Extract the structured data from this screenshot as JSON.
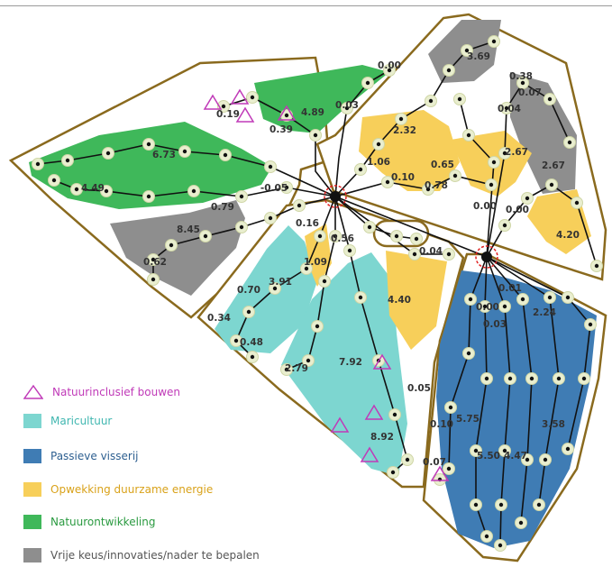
{
  "legend": {
    "items": [
      {
        "label": "Natuurinclusief bouwen",
        "color": "#c03ab8",
        "icon": "triangle-outline-icon",
        "label_color": "#c03ab8"
      },
      {
        "label": "Maricultuur",
        "color": "#7dd6d0",
        "icon": "square-swatch",
        "label_color": "#40b7b0"
      },
      {
        "label": "Passieve visserij",
        "color": "#3f7cb4",
        "icon": "square-swatch",
        "label_color": "#2d5f90"
      },
      {
        "label": "Opwekking duurzame energie",
        "color": "#f7cf5a",
        "icon": "square-swatch",
        "label_color": "#d9a21a"
      },
      {
        "label": "Natuurontwikkeling",
        "color": "#3fb85a",
        "icon": "square-swatch",
        "label_color": "#2a9a40"
      },
      {
        "label": "Vrije keus/innovaties/nader te bepalen",
        "color": "#8e8e8e",
        "icon": "square-swatch",
        "label_color": "#555555"
      }
    ]
  },
  "map": {
    "outline_color": "#8a6a1e",
    "cable_color": "#111111",
    "substation_marker_color": "#e02020",
    "values": [
      "0.00",
      "4.89",
      "0.03",
      "0.19",
      "0.39",
      "6.73",
      "4.49",
      "-0.05",
      "0.79",
      "8.45",
      "0.62",
      "3.69",
      "0.38",
      "0.07",
      "0.04",
      "2.32",
      "1.06",
      "0.10",
      "0.65",
      "0.78",
      "2.67",
      "2.67",
      "0.00",
      "0.00",
      "4.20",
      "0.16",
      "0.56",
      "1.09",
      "0.70",
      "3.91",
      "0.34",
      "0.48",
      "2.79",
      "7.92",
      "8.92",
      "4.40",
      "0.04",
      "0.05",
      "0.01",
      "0.00",
      "2.24",
      "0.03",
      "5.75",
      "3.58",
      "0.10",
      "5.50",
      "4.47",
      "0.07"
    ]
  }
}
